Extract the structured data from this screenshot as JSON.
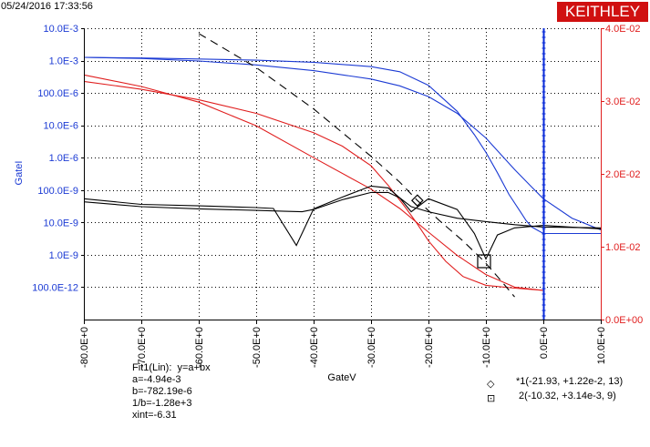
{
  "header": {
    "timestamp": "05/24/2016 17:33:56",
    "logo": "KEITHLEY"
  },
  "colors": {
    "left_axis": "#1c3bd4",
    "right_axis": "#e01e1e",
    "grid": "#000000",
    "cursor_line": "#0a2bd8"
  },
  "chart_data": {
    "type": "line",
    "xlabel": "GateV",
    "ylabel_left": "GateI",
    "x_ticks": [
      "-80.0E+0",
      "-70.0E+0",
      "-60.0E+0",
      "-50.0E+0",
      "-40.0E+0",
      "-30.0E+0",
      "-20.0E+0",
      "-10.0E+0",
      "0.0E+0",
      "10.0E+0"
    ],
    "x_range": [
      -80,
      10
    ],
    "y_left_ticks": [
      "10.0E-3",
      "1.0E-3",
      "100.0E-6",
      "10.0E-6",
      "1.0E-6",
      "100.0E-9",
      "10.0E-9",
      "1.0E-9",
      "100.0E-12"
    ],
    "y_left_log_range": [
      -12,
      -2
    ],
    "y_left_scale": "log",
    "y_right_ticks": [
      "4.0E-02",
      "3.0E-02",
      "2.0E-02",
      "1.0E-02",
      "0.0E+00"
    ],
    "y_right_range": [
      0,
      0.04
    ],
    "grid": true,
    "cursor_x": 0,
    "series": [
      {
        "axis": "left",
        "color": "#1c3bd4",
        "dash": "",
        "x": [
          -80,
          -70,
          -60,
          -50,
          -40,
          -30,
          -25,
          -20,
          -15,
          -12,
          -10,
          -8,
          -6,
          -4,
          -3,
          -2,
          0,
          5,
          10
        ],
        "y": [
          0.001,
          0.00095,
          0.00088,
          0.0008,
          0.00068,
          0.00048,
          0.00032,
          0.00011,
          1.4e-05,
          2.2e-06,
          5.5e-07,
          1.1e-07,
          2e-08,
          5e-09,
          2.5e-09,
          1.5e-09,
          9e-10,
          9e-10,
          9e-10
        ]
      },
      {
        "axis": "left",
        "color": "#1c3bd4",
        "dash": "",
        "x": [
          -80,
          -70,
          -60,
          -50,
          -40,
          -30,
          -25,
          -20,
          -15,
          -10,
          -5,
          -2,
          0,
          5,
          10
        ],
        "y": [
          0.001,
          0.00092,
          0.00075,
          0.00055,
          0.00035,
          0.00018,
          0.000105,
          4.5e-05,
          1.2e-05,
          1.7e-06,
          1.4e-07,
          3.5e-08,
          1.4e-08,
          3e-09,
          1.2e-09
        ]
      },
      {
        "axis": "left",
        "color": "#e01e1e",
        "dash": "",
        "x": [
          -80,
          -70,
          -60,
          -50,
          -40,
          -35,
          -30,
          -27,
          -24,
          -22,
          -20,
          -17,
          -14,
          -10,
          -5,
          0
        ],
        "y": [
          0.00015,
          8e-05,
          3.5e-05,
          1.2e-05,
          2.6e-06,
          9e-07,
          1.9e-07,
          4e-08,
          7e-09,
          2e-09,
          5e-10,
          1e-10,
          3e-11,
          1.5e-11,
          1.2e-11,
          1e-11
        ]
      },
      {
        "axis": "left",
        "color": "#e01e1e",
        "dash": "",
        "x": [
          -80,
          -70,
          -60,
          -50,
          -40,
          -30,
          -25,
          -20,
          -15,
          -10,
          -5,
          0
        ],
        "y": [
          0.00025,
          0.0001,
          2.9e-05,
          4.5e-06,
          3.6e-07,
          3e-08,
          6.5e-09,
          1e-09,
          1.6e-10,
          3.5e-11,
          1.3e-11,
          1e-11
        ]
      },
      {
        "axis": "left",
        "color": "#000000",
        "dash": "9,6",
        "x": [
          -60,
          -50,
          -40,
          -30,
          -25,
          -21.93,
          -18,
          -14,
          -10.32,
          -8,
          -5
        ],
        "y": [
          0.0066,
          0.00045,
          1.7e-05,
          4e-07,
          5.2e-08,
          1.22e-08,
          2.4e-09,
          5e-10,
          1e-10,
          3e-11,
          6e-12
        ]
      },
      {
        "axis": "left",
        "color": "#000000",
        "dash": "",
        "x": [
          -80,
          -70,
          -60,
          -50,
          -45,
          -42,
          -40,
          -35,
          -30,
          -27,
          -25,
          -23,
          -20,
          -15,
          -10,
          -5,
          0,
          10
        ],
        "y": [
          1.1e-08,
          7.5e-09,
          6.3e-09,
          5.6e-09,
          5.2e-09,
          5e-09,
          6e-09,
          1.3e-08,
          2.3e-08,
          2.3e-08,
          1.5e-08,
          7.5e-09,
          5e-09,
          3e-09,
          2.3e-09,
          1.8e-09,
          1.5e-09,
          1.4e-09
        ]
      },
      {
        "axis": "left",
        "color": "#000000",
        "dash": "",
        "x": [
          -80,
          -70,
          -60,
          -50,
          -47,
          -43,
          -40,
          -35,
          -30,
          -27,
          -25,
          -23,
          -20,
          -15,
          -12,
          -10,
          -8,
          -5,
          0,
          10
        ],
        "y": [
          1.4e-08,
          9e-09,
          8e-09,
          7e-09,
          6.5e-09,
          3.5e-10,
          6.3e-09,
          1.6e-08,
          3.8e-08,
          3.3e-08,
          1.5e-08,
          5e-09,
          1.4e-08,
          6e-09,
          9e-10,
          1.2e-10,
          8e-10,
          1.4e-09,
          1.7e-09,
          1.3e-09
        ]
      }
    ],
    "markers": [
      {
        "label": "1",
        "shape": "diamond",
        "x": -21.93,
        "y": 1.22e-08
      },
      {
        "label": "2",
        "shape": "square",
        "x": -10.32,
        "y": 1e-10
      }
    ]
  },
  "fit": {
    "title": "Fit1(Lin):  y=a+bx",
    "a": "a=-4.94e-3",
    "b": "b=-782.19e-6",
    "inv_b": "1/b=-1.28e+3",
    "xint": "xint=-6.31"
  },
  "cursors": [
    {
      "symbol": "◇",
      "text": "*1(-21.93, +1.22e-2, 13)"
    },
    {
      "symbol": "⊡",
      "text": " 2(-10.32, +3.14e-3, 9)"
    }
  ]
}
